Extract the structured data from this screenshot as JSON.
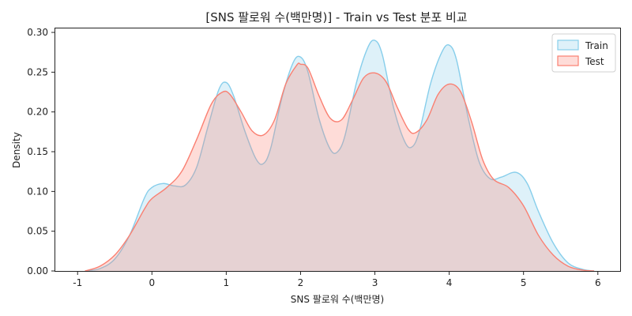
{
  "chart_data": {
    "type": "area",
    "title": "[SNS 팔로워 수(백만명)] - Train vs Test 분포 비교",
    "xlabel": "SNS 팔로워 수(백만명)",
    "ylabel": "Density",
    "xlim": [
      -1.3,
      6.3
    ],
    "ylim": [
      0,
      0.305
    ],
    "xticks": [
      -1,
      0,
      1,
      2,
      3,
      4,
      5,
      6
    ],
    "xtick_labels": [
      "-1",
      "0",
      "1",
      "2",
      "3",
      "4",
      "5",
      "6"
    ],
    "yticks": [
      0.0,
      0.05,
      0.1,
      0.15,
      0.2,
      0.25,
      0.3
    ],
    "ytick_labels": [
      "0.00",
      "0.05",
      "0.10",
      "0.15",
      "0.20",
      "0.25",
      "0.30"
    ],
    "grid": false,
    "legend_position": "top-right",
    "series": [
      {
        "name": "Train",
        "stroke": "#87CEEB",
        "fill": "#87CEEB",
        "x": [
          -0.9,
          -0.7,
          -0.5,
          -0.3,
          -0.1,
          0.0,
          0.15,
          0.3,
          0.45,
          0.6,
          0.75,
          0.9,
          1.0,
          1.1,
          1.25,
          1.4,
          1.5,
          1.6,
          1.75,
          1.9,
          2.0,
          2.1,
          2.25,
          2.4,
          2.5,
          2.6,
          2.75,
          2.9,
          3.0,
          3.1,
          3.25,
          3.4,
          3.5,
          3.6,
          3.75,
          3.9,
          4.0,
          4.1,
          4.25,
          4.4,
          4.55,
          4.7,
          4.9,
          5.05,
          5.2,
          5.4,
          5.6,
          5.8,
          5.95
        ],
        "y": [
          0.0,
          0.003,
          0.015,
          0.045,
          0.092,
          0.105,
          0.11,
          0.107,
          0.108,
          0.13,
          0.18,
          0.228,
          0.237,
          0.22,
          0.176,
          0.141,
          0.135,
          0.155,
          0.218,
          0.262,
          0.269,
          0.25,
          0.191,
          0.153,
          0.15,
          0.171,
          0.236,
          0.28,
          0.29,
          0.272,
          0.206,
          0.163,
          0.156,
          0.176,
          0.236,
          0.275,
          0.284,
          0.265,
          0.195,
          0.138,
          0.116,
          0.118,
          0.124,
          0.11,
          0.075,
          0.035,
          0.01,
          0.002,
          0.0
        ]
      },
      {
        "name": "Test",
        "stroke": "#FA8072",
        "fill": "#FA8072",
        "x": [
          -0.9,
          -0.7,
          -0.5,
          -0.3,
          -0.1,
          0.0,
          0.2,
          0.4,
          0.6,
          0.8,
          0.95,
          1.05,
          1.2,
          1.35,
          1.5,
          1.65,
          1.8,
          1.95,
          2.0,
          2.1,
          2.25,
          2.4,
          2.55,
          2.7,
          2.85,
          3.0,
          3.15,
          3.3,
          3.45,
          3.55,
          3.7,
          3.85,
          4.0,
          4.15,
          4.3,
          4.45,
          4.6,
          4.8,
          5.0,
          5.2,
          5.4,
          5.6,
          5.8,
          5.95
        ],
        "y": [
          0.0,
          0.006,
          0.02,
          0.045,
          0.078,
          0.091,
          0.105,
          0.125,
          0.165,
          0.21,
          0.225,
          0.222,
          0.2,
          0.176,
          0.171,
          0.19,
          0.235,
          0.259,
          0.26,
          0.255,
          0.22,
          0.192,
          0.19,
          0.215,
          0.243,
          0.249,
          0.238,
          0.206,
          0.178,
          0.174,
          0.19,
          0.222,
          0.235,
          0.226,
          0.188,
          0.14,
          0.115,
          0.105,
          0.082,
          0.045,
          0.02,
          0.006,
          0.001,
          0.0
        ]
      }
    ]
  }
}
